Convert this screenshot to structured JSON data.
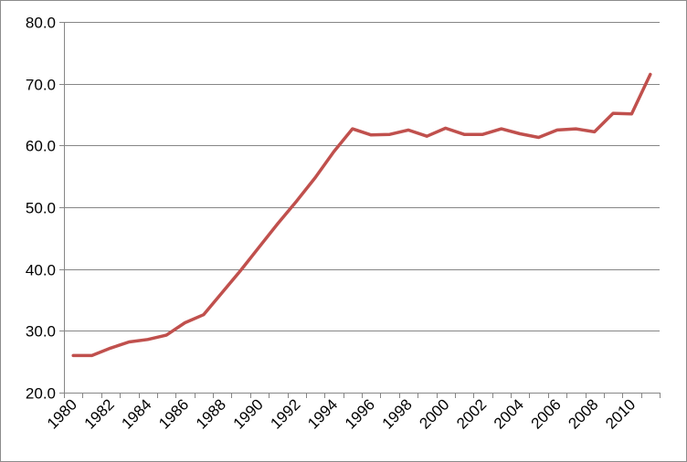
{
  "chart_data": {
    "type": "line",
    "title": "",
    "xlabel": "",
    "ylabel": "",
    "x": [
      1980,
      1981,
      1982,
      1983,
      1984,
      1985,
      1986,
      1987,
      1988,
      1989,
      1990,
      1991,
      1992,
      1993,
      1994,
      1995,
      1996,
      1997,
      1998,
      1999,
      2000,
      2001,
      2002,
      2003,
      2004,
      2005,
      2006,
      2007,
      2008,
      2009,
      2010,
      2011
    ],
    "x_tick_labels": [
      "1980",
      "1982",
      "1984",
      "1986",
      "1988",
      "1990",
      "1992",
      "1994",
      "1996",
      "1998",
      "2000",
      "2002",
      "2004",
      "2006",
      "2008",
      "2010"
    ],
    "y_tick_labels": [
      "20.0",
      "30.0",
      "40.0",
      "50.0",
      "60.0",
      "70.0",
      "80.0"
    ],
    "ylim": [
      20,
      80
    ],
    "grid": true,
    "legend": "none",
    "series": [
      {
        "color": "#c0504d",
        "values": [
          26.0,
          26.0,
          27.2,
          28.2,
          28.6,
          29.3,
          31.3,
          32.6,
          36.2,
          39.8,
          43.6,
          47.4,
          51.0,
          54.8,
          59.0,
          62.7,
          61.7,
          61.8,
          62.5,
          61.5,
          62.8,
          61.8,
          61.8,
          62.7,
          61.9,
          61.3,
          62.5,
          62.7,
          62.2,
          65.2,
          65.1,
          71.5
        ]
      }
    ]
  }
}
